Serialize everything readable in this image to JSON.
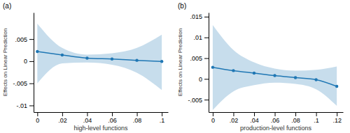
{
  "chart_data": [
    {
      "type": "line",
      "title": "(a)",
      "xlabel": "high-level functions",
      "ylabel": "Effects on Linear Prediction",
      "x": [
        0.0,
        0.02,
        0.04,
        0.06,
        0.08,
        0.1
      ],
      "values": [
        0.0022,
        0.0014,
        0.0007,
        0.0005,
        0.0002,
        -5e-05
      ],
      "ci_upper": [
        0.0085,
        0.003,
        0.0015,
        0.0018,
        0.003,
        0.006
      ],
      "ci_lower": [
        -0.005,
        -0.0005,
        -0.0003,
        -0.0008,
        -0.0026,
        -0.0065
      ],
      "xlim": [
        -0.003,
        0.105
      ],
      "ylim": [
        -0.0115,
        0.011
      ],
      "yticks": [
        {
          "value": -0.01,
          "label": "-.01"
        },
        {
          "value": -0.005,
          "label": "-.005"
        },
        0,
        {
          "value": 0.005,
          "label": ".005"
        }
      ],
      "xticks": [
        0,
        {
          "value": 0.02,
          "label": ".02"
        },
        {
          "value": 0.04,
          "label": ".04"
        },
        {
          "value": 0.06,
          "label": ".06"
        },
        {
          "value": 0.08,
          "label": ".08"
        },
        {
          "value": 0.1,
          "label": ".1"
        }
      ],
      "marker": "circle",
      "grid": false
    },
    {
      "type": "line",
      "title": "(b)",
      "xlabel": "production-level functions",
      "ylabel": "Effects on Linear Prediction",
      "x": [
        0.0,
        0.02,
        0.04,
        0.06,
        0.08,
        0.1,
        0.12
      ],
      "values": [
        0.0028,
        0.002,
        0.0014,
        0.0008,
        0.0003,
        -0.0002,
        -0.0018
      ],
      "ci_upper": [
        0.013,
        0.007,
        0.004,
        0.0025,
        0.002,
        0.0022,
        0.003
      ],
      "ci_lower": [
        -0.0075,
        -0.003,
        -0.0015,
        -0.0009,
        -0.0012,
        -0.0025,
        -0.0065
      ],
      "xlim": [
        -0.004,
        0.126
      ],
      "ylim": [
        -0.008,
        0.016
      ],
      "yticks": [
        {
          "value": -0.005,
          "label": "-.005"
        },
        0,
        {
          "value": 0.005,
          "label": ".005"
        },
        {
          "value": 0.01,
          "label": ".01"
        },
        {
          "value": 0.015,
          "label": ".015"
        }
      ],
      "xticks": [
        0,
        {
          "value": 0.02,
          "label": ".02"
        },
        {
          "value": 0.04,
          "label": ".04"
        },
        {
          "value": 0.06,
          "label": ".06"
        },
        {
          "value": 0.08,
          "label": ".08"
        },
        {
          "value": 0.1,
          "label": ".1"
        },
        {
          "value": 0.12,
          "label": ".12"
        }
      ],
      "marker": "circle",
      "grid": false
    }
  ]
}
